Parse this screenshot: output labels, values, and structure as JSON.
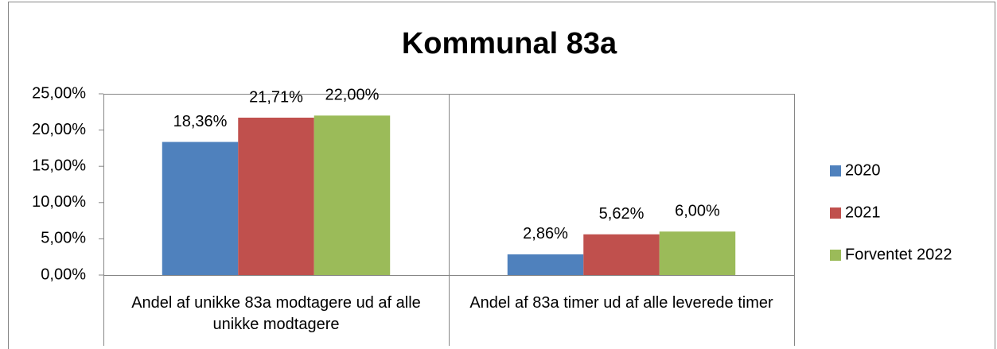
{
  "chart_data": {
    "type": "bar",
    "title": "Kommunal 83a",
    "categories": [
      "Andel af unikke 83a modtagere ud af alle unikke modtagere",
      "Andel af 83a timer ud af alle leverede timer"
    ],
    "series": [
      {
        "name": "2020",
        "color": "#4f81bd",
        "values": [
          18.36,
          2.86
        ],
        "value_labels": [
          "18,36%",
          "2,86%"
        ]
      },
      {
        "name": "2021",
        "color": "#c0504d",
        "values": [
          21.71,
          5.62
        ],
        "value_labels": [
          "21,71%",
          "5,62%"
        ]
      },
      {
        "name": "Forventet 2022",
        "color": "#9bbb59",
        "values": [
          22.0,
          6.0
        ],
        "value_labels": [
          "22,00%",
          "6,00%"
        ]
      }
    ],
    "ylim": [
      0,
      25
    ],
    "yticks": [
      {
        "value": 0,
        "label": "0,00%"
      },
      {
        "value": 5,
        "label": "5,00%"
      },
      {
        "value": 10,
        "label": "10,00%"
      },
      {
        "value": 15,
        "label": "15,00%"
      },
      {
        "value": 20,
        "label": "20,00%"
      },
      {
        "value": 25,
        "label": "25,00%"
      }
    ],
    "legend": "right"
  }
}
